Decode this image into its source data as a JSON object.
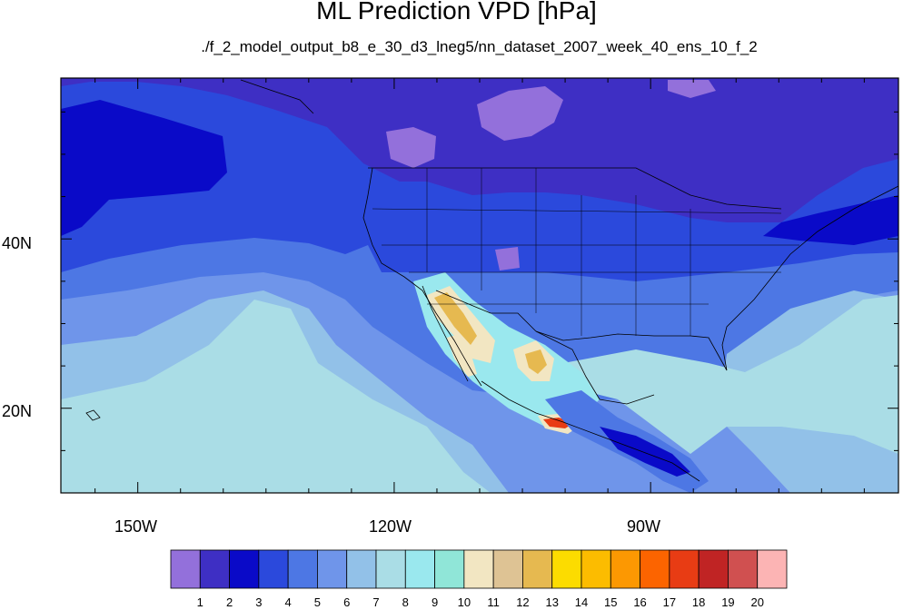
{
  "title": "ML Prediction VPD [hPa]",
  "subtitle": "./f_2_model_output_b8_e_30_d3_lneg5/nn_dataset_2007_week_40_ens_10_f_2",
  "lat_labels": [
    "40N",
    "20N"
  ],
  "lon_labels": [
    "150W",
    "120W",
    "90W"
  ],
  "colorbar": {
    "labels": [
      "1",
      "2",
      "3",
      "4",
      "5",
      "6",
      "7",
      "8",
      "9",
      "10",
      "11",
      "12",
      "13",
      "14",
      "15",
      "16",
      "17",
      "18",
      "19",
      "20"
    ],
    "colors": [
      "#9370db",
      "#3e2fc4",
      "#0a0ac8",
      "#2b49dc",
      "#4d77e4",
      "#6f95ea",
      "#92c1e8",
      "#aadde6",
      "#9ae8ee",
      "#90e6d8",
      "#f2e6c2",
      "#dec394",
      "#e6b950",
      "#fcdc00",
      "#fcbc00",
      "#fc9802",
      "#fc6400",
      "#e83c14",
      "#c02424",
      "#d05050",
      "#fcb4b4"
    ]
  },
  "map": {
    "projection": "cylindrical-equidistant",
    "lon_range": [
      -159,
      -61
    ],
    "lat_range": [
      10,
      59
    ],
    "lon_ticks": [
      -150,
      -120,
      -90
    ],
    "lat_ticks": [
      40,
      20
    ]
  }
}
